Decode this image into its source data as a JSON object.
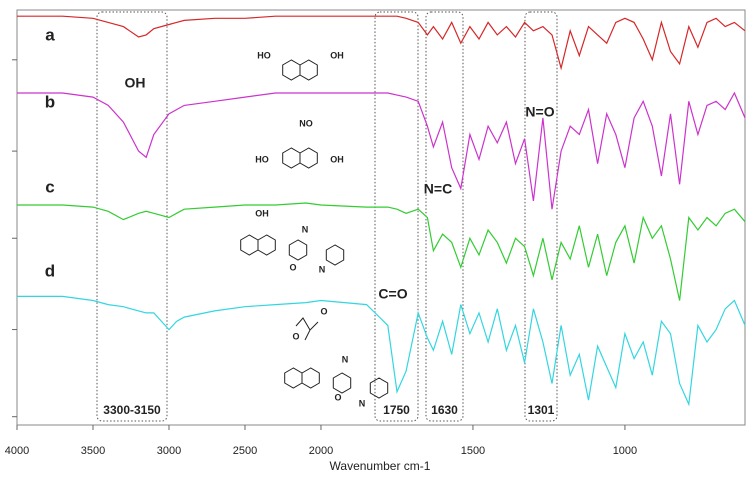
{
  "chart_data": {
    "type": "line",
    "x_label": "Wavenumber cm-1",
    "x_scale_break": 2000,
    "xlim": [
      4000,
      605
    ],
    "xticks": [
      4000,
      3500,
      3000,
      2500,
      2000,
      1500,
      1000
    ],
    "ylim": [
      0,
      100
    ],
    "yticks": [
      2,
      23,
      45,
      66,
      88
    ],
    "x": [
      4000,
      3700,
      3500,
      3400,
      3300,
      3200,
      3150,
      3100,
      3000,
      2950,
      2900,
      2700,
      2500,
      2300,
      2100,
      2000,
      1850,
      1780,
      1750,
      1720,
      1680,
      1650,
      1630,
      1600,
      1570,
      1540,
      1510,
      1480,
      1450,
      1420,
      1390,
      1360,
      1330,
      1301,
      1270,
      1240,
      1210,
      1180,
      1150,
      1120,
      1090,
      1060,
      1030,
      1000,
      970,
      940,
      910,
      880,
      850,
      820,
      790,
      760,
      730,
      700,
      670,
      640,
      605
    ],
    "series": [
      {
        "name": "a",
        "color": "#d62728",
        "values": [
          98.5,
          98.5,
          98,
          97,
          96,
          93.5,
          94,
          95.5,
          96.5,
          97,
          97.5,
          98,
          98,
          98.5,
          98.5,
          98.5,
          98.5,
          98.5,
          98.5,
          98,
          97,
          94,
          96,
          93,
          97,
          92,
          96,
          93,
          97,
          94,
          96,
          93.5,
          97,
          95,
          96,
          94,
          86,
          95,
          89,
          96,
          94,
          92,
          97,
          98,
          97,
          93,
          88,
          97,
          90,
          87,
          96,
          91,
          97,
          98,
          96,
          97,
          95
        ]
      },
      {
        "name": "b",
        "color": "#cc33cc",
        "values": [
          80,
          80,
          79,
          77,
          73,
          66,
          64.5,
          70,
          75,
          76,
          77,
          78,
          79,
          80,
          80,
          80,
          80,
          80,
          79.5,
          79,
          78,
          72,
          67,
          73,
          62,
          57,
          70,
          64,
          72,
          68,
          73,
          63,
          69,
          54,
          74,
          52,
          66,
          72,
          70,
          76,
          63,
          75,
          70,
          62,
          74,
          78,
          72,
          60,
          75,
          58,
          78,
          70,
          77,
          78,
          76,
          80,
          74
        ]
      },
      {
        "name": "c",
        "color": "#33cc33",
        "values": [
          53,
          53,
          52.5,
          51.5,
          49.5,
          51,
          51.5,
          51,
          50,
          51,
          52,
          52.5,
          53,
          53,
          53.5,
          53,
          52.5,
          52.5,
          52,
          51,
          52,
          50,
          42,
          46,
          44,
          38,
          45,
          41,
          47,
          44,
          39,
          45,
          43,
          36,
          45,
          35,
          44,
          40,
          48,
          38,
          46,
          36,
          44,
          48,
          39,
          50,
          45,
          48,
          40,
          30,
          50,
          47,
          50,
          48,
          51,
          52,
          49
        ]
      },
      {
        "name": "d",
        "color": "#33d6e0",
        "values": [
          31,
          31,
          30,
          29,
          28.5,
          27.5,
          27,
          27,
          23,
          25,
          26,
          27.5,
          28.5,
          29,
          29.5,
          30,
          29,
          24,
          8,
          13,
          27,
          21,
          18,
          25,
          17,
          29,
          22,
          27,
          20,
          28,
          18,
          24,
          15,
          28,
          20,
          10,
          24,
          12,
          17,
          6,
          19,
          14,
          9,
          22,
          16,
          20,
          12,
          25,
          22,
          10,
          5,
          24,
          20,
          23,
          28,
          30,
          24
        ]
      }
    ],
    "annotations": [
      "OH",
      "N=O",
      "N=C",
      "C=O"
    ],
    "regions": [
      "3300-3150",
      "1750",
      "1630",
      "1301"
    ],
    "structures": [
      [
        "HO",
        "OH"
      ],
      [
        "HO",
        "NO",
        "OH"
      ],
      [
        "OH",
        "N",
        "O",
        "N"
      ],
      [
        "O",
        "O",
        "N",
        "O",
        "N"
      ]
    ]
  }
}
